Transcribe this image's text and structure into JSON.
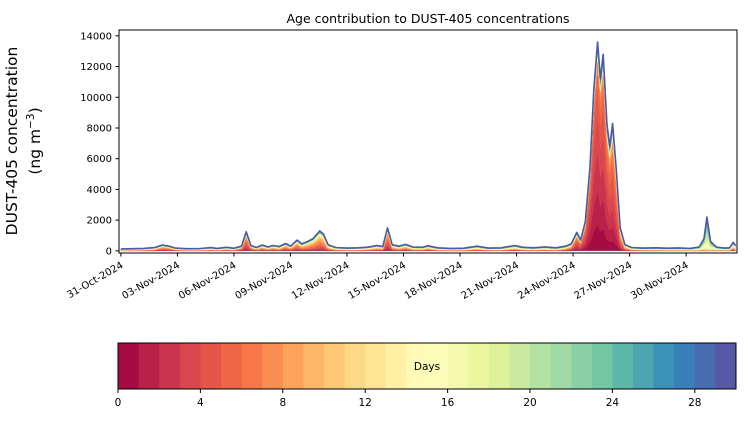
{
  "chart": {
    "title": "Age contribution to DUST-405 concentrations",
    "ylabel_line1": "DUST-405 concentration",
    "ylabel_line2_pre": "(ng m",
    "ylabel_sup": "−3",
    "ylabel_line2_close": ")",
    "yticks": [
      0,
      2000,
      4000,
      6000,
      8000,
      10000,
      12000,
      14000
    ],
    "xtick_labels": [
      "31-Oct-2024",
      "03-Nov-2024",
      "06-Nov-2024",
      "09-Nov-2024",
      "12-Nov-2024",
      "15-Nov-2024",
      "18-Nov-2024",
      "21-Nov-2024",
      "24-Nov-2024",
      "27-Nov-2024",
      "30-Nov-2024"
    ]
  },
  "colorbar": {
    "label": "Days",
    "ticks": [
      0,
      4,
      8,
      12,
      16,
      20,
      24,
      28
    ],
    "n_bins": 30,
    "range_days": [
      0,
      30
    ],
    "colormap": "Spectral",
    "anchors": [
      "#9e0142",
      "#d53e4f",
      "#f46d43",
      "#fdae61",
      "#fee08b",
      "#ffffbf",
      "#e6f598",
      "#abdda4",
      "#66c2a5",
      "#3288bd",
      "#5e4fa2"
    ]
  },
  "chart_data": {
    "type": "stacked_area",
    "title": "Age contribution to DUST-405 concentrations",
    "ylabel": "DUST-405 concentration (ng m−3)",
    "xlabel": "",
    "legend": "colorbar (Days, age of dust, 0–30, 30 bins, Spectral colormap, youngest age stacked at bottom)",
    "ylim": [
      0,
      14000
    ],
    "x_unit": "days_since_31-Oct-2024_00:00",
    "x_range_days": [
      -0.1,
      32.7
    ],
    "xtick_days": [
      0,
      3,
      6,
      9,
      12,
      15,
      18,
      21,
      24,
      27,
      30
    ],
    "xtick_labels": [
      "31-Oct-2024",
      "03-Nov-2024",
      "06-Nov-2024",
      "09-Nov-2024",
      "12-Nov-2024",
      "15-Nov-2024",
      "18-Nov-2024",
      "21-Nov-2024",
      "24-Nov-2024",
      "27-Nov-2024",
      "30-Nov-2024"
    ],
    "age_bins": {
      "min_days": 0,
      "max_days": 30,
      "count": 30
    },
    "point_format": [
      "t_days",
      "total_ng_m3",
      "age_mean_days",
      "age_sd_days",
      "old_uniform_fraction"
    ],
    "notable_features": [
      {
        "when": "06-Nov evening",
        "total": 1250,
        "composition": "young (3-8 day) dust spike"
      },
      {
        "when": "10-11 Nov",
        "total": 1300,
        "composition": "broad bump, 5-12 day old dust"
      },
      {
        "when": "14-Nov",
        "total": 1500,
        "composition": "young dust spike"
      },
      {
        "when": "25-Nov ~09:00",
        "total": 13600,
        "composition": "major event, mostly 0-6 day old dust, thin old-age blue cap"
      },
      {
        "when": "25-Nov ~16:00",
        "total": 12800,
        "composition": "second spike of major event"
      },
      {
        "when": "26-Nov",
        "total": 8300,
        "composition": "third spike of major event"
      },
      {
        "when": "01-Dec",
        "total": 2200,
        "composition": "aged (18-26 day) dust spike"
      }
    ],
    "points": [
      [
        0.0,
        130,
        10,
        8,
        0.35
      ],
      [
        0.6,
        140,
        10,
        8,
        0.35
      ],
      [
        1.2,
        160,
        9,
        7,
        0.35
      ],
      [
        1.8,
        220,
        8,
        6,
        0.3
      ],
      [
        2.2,
        380,
        6,
        3.5,
        0.25
      ],
      [
        2.5,
        320,
        6,
        3.5,
        0.25
      ],
      [
        2.9,
        180,
        8,
        6,
        0.3
      ],
      [
        3.5,
        140,
        10,
        7,
        0.35
      ],
      [
        4.2,
        150,
        10,
        7,
        0.35
      ],
      [
        4.8,
        210,
        9,
        6,
        0.3
      ],
      [
        5.1,
        160,
        10,
        7,
        0.3
      ],
      [
        5.6,
        230,
        8,
        5,
        0.3
      ],
      [
        6.0,
        170,
        9,
        6,
        0.3
      ],
      [
        6.4,
        300,
        6,
        4,
        0.25
      ],
      [
        6.65,
        1250,
        5,
        3,
        0.18
      ],
      [
        6.9,
        350,
        6,
        4,
        0.25
      ],
      [
        7.2,
        220,
        8,
        5,
        0.3
      ],
      [
        7.5,
        380,
        7,
        4,
        0.25
      ],
      [
        7.8,
        260,
        8,
        5,
        0.3
      ],
      [
        8.1,
        350,
        7,
        4,
        0.25
      ],
      [
        8.4,
        280,
        8,
        5,
        0.3
      ],
      [
        8.75,
        480,
        6,
        4,
        0.22
      ],
      [
        9.0,
        300,
        7,
        4,
        0.25
      ],
      [
        9.35,
        700,
        6,
        4,
        0.2
      ],
      [
        9.6,
        450,
        7,
        4,
        0.22
      ],
      [
        9.9,
        600,
        7,
        4,
        0.2
      ],
      [
        10.2,
        800,
        7,
        4,
        0.2
      ],
      [
        10.55,
        1300,
        7,
        4,
        0.18
      ],
      [
        10.75,
        1100,
        7,
        4,
        0.18
      ],
      [
        11.0,
        400,
        8,
        5,
        0.25
      ],
      [
        11.4,
        220,
        9,
        6,
        0.3
      ],
      [
        12.0,
        180,
        10,
        7,
        0.32
      ],
      [
        12.6,
        200,
        10,
        7,
        0.32
      ],
      [
        13.1,
        240,
        9,
        6,
        0.3
      ],
      [
        13.6,
        350,
        8,
        5,
        0.28
      ],
      [
        13.9,
        280,
        8,
        5,
        0.28
      ],
      [
        14.15,
        1500,
        5,
        3,
        0.15
      ],
      [
        14.4,
        400,
        7,
        4,
        0.25
      ],
      [
        14.75,
        300,
        8,
        5,
        0.28
      ],
      [
        15.1,
        420,
        7,
        4,
        0.25
      ],
      [
        15.5,
        250,
        9,
        6,
        0.3
      ],
      [
        16.0,
        230,
        9,
        6,
        0.3
      ],
      [
        16.3,
        330,
        8,
        5,
        0.28
      ],
      [
        16.8,
        200,
        10,
        7,
        0.32
      ],
      [
        17.5,
        160,
        10,
        7,
        0.35
      ],
      [
        18.2,
        170,
        10,
        7,
        0.35
      ],
      [
        18.9,
        300,
        9,
        6,
        0.3
      ],
      [
        19.5,
        180,
        10,
        7,
        0.35
      ],
      [
        20.2,
        200,
        10,
        7,
        0.35
      ],
      [
        20.9,
        350,
        9,
        6,
        0.3
      ],
      [
        21.3,
        240,
        10,
        7,
        0.32
      ],
      [
        21.9,
        200,
        10,
        7,
        0.35
      ],
      [
        22.5,
        260,
        10,
        7,
        0.32
      ],
      [
        23.1,
        200,
        10,
        7,
        0.35
      ],
      [
        23.6,
        300,
        8,
        5,
        0.3
      ],
      [
        23.9,
        450,
        6,
        4,
        0.25
      ],
      [
        24.2,
        1200,
        4,
        3,
        0.18
      ],
      [
        24.4,
        700,
        4,
        3,
        0.18
      ],
      [
        24.65,
        1900,
        3.5,
        2.8,
        0.12
      ],
      [
        24.9,
        5500,
        3,
        2.6,
        0.09
      ],
      [
        25.1,
        10500,
        2.6,
        2.4,
        0.07
      ],
      [
        25.3,
        13600,
        2.5,
        2.4,
        0.06
      ],
      [
        25.45,
        11200,
        2.8,
        2.5,
        0.07
      ],
      [
        25.6,
        12800,
        2.8,
        2.5,
        0.07
      ],
      [
        25.8,
        8200,
        3.2,
        2.6,
        0.09
      ],
      [
        25.95,
        6800,
        3.4,
        2.8,
        0.1
      ],
      [
        26.1,
        8300,
        3.5,
        2.8,
        0.1
      ],
      [
        26.3,
        5200,
        3.8,
        3,
        0.12
      ],
      [
        26.5,
        1500,
        5,
        4,
        0.18
      ],
      [
        26.75,
        400,
        7,
        5,
        0.25
      ],
      [
        27.1,
        220,
        9,
        6,
        0.3
      ],
      [
        27.7,
        180,
        10,
        7,
        0.35
      ],
      [
        28.4,
        200,
        11,
        7,
        0.35
      ],
      [
        29.0,
        170,
        11,
        7,
        0.35
      ],
      [
        29.6,
        190,
        12,
        7,
        0.35
      ],
      [
        30.2,
        160,
        12,
        7,
        0.35
      ],
      [
        30.7,
        250,
        14,
        7,
        0.3
      ],
      [
        30.95,
        800,
        18,
        6,
        0.15
      ],
      [
        31.1,
        2200,
        20,
        5,
        0.1
      ],
      [
        31.3,
        600,
        18,
        6,
        0.15
      ],
      [
        31.6,
        250,
        13,
        7,
        0.3
      ],
      [
        32.0,
        180,
        12,
        7,
        0.32
      ],
      [
        32.3,
        200,
        12,
        7,
        0.32
      ],
      [
        32.5,
        550,
        10,
        6,
        0.25
      ],
      [
        32.62,
        350,
        10,
        6,
        0.25
      ]
    ],
    "outline_color": "#4a5aa8",
    "grid": false,
    "legend_position": "horizontal colorbar below plot"
  }
}
